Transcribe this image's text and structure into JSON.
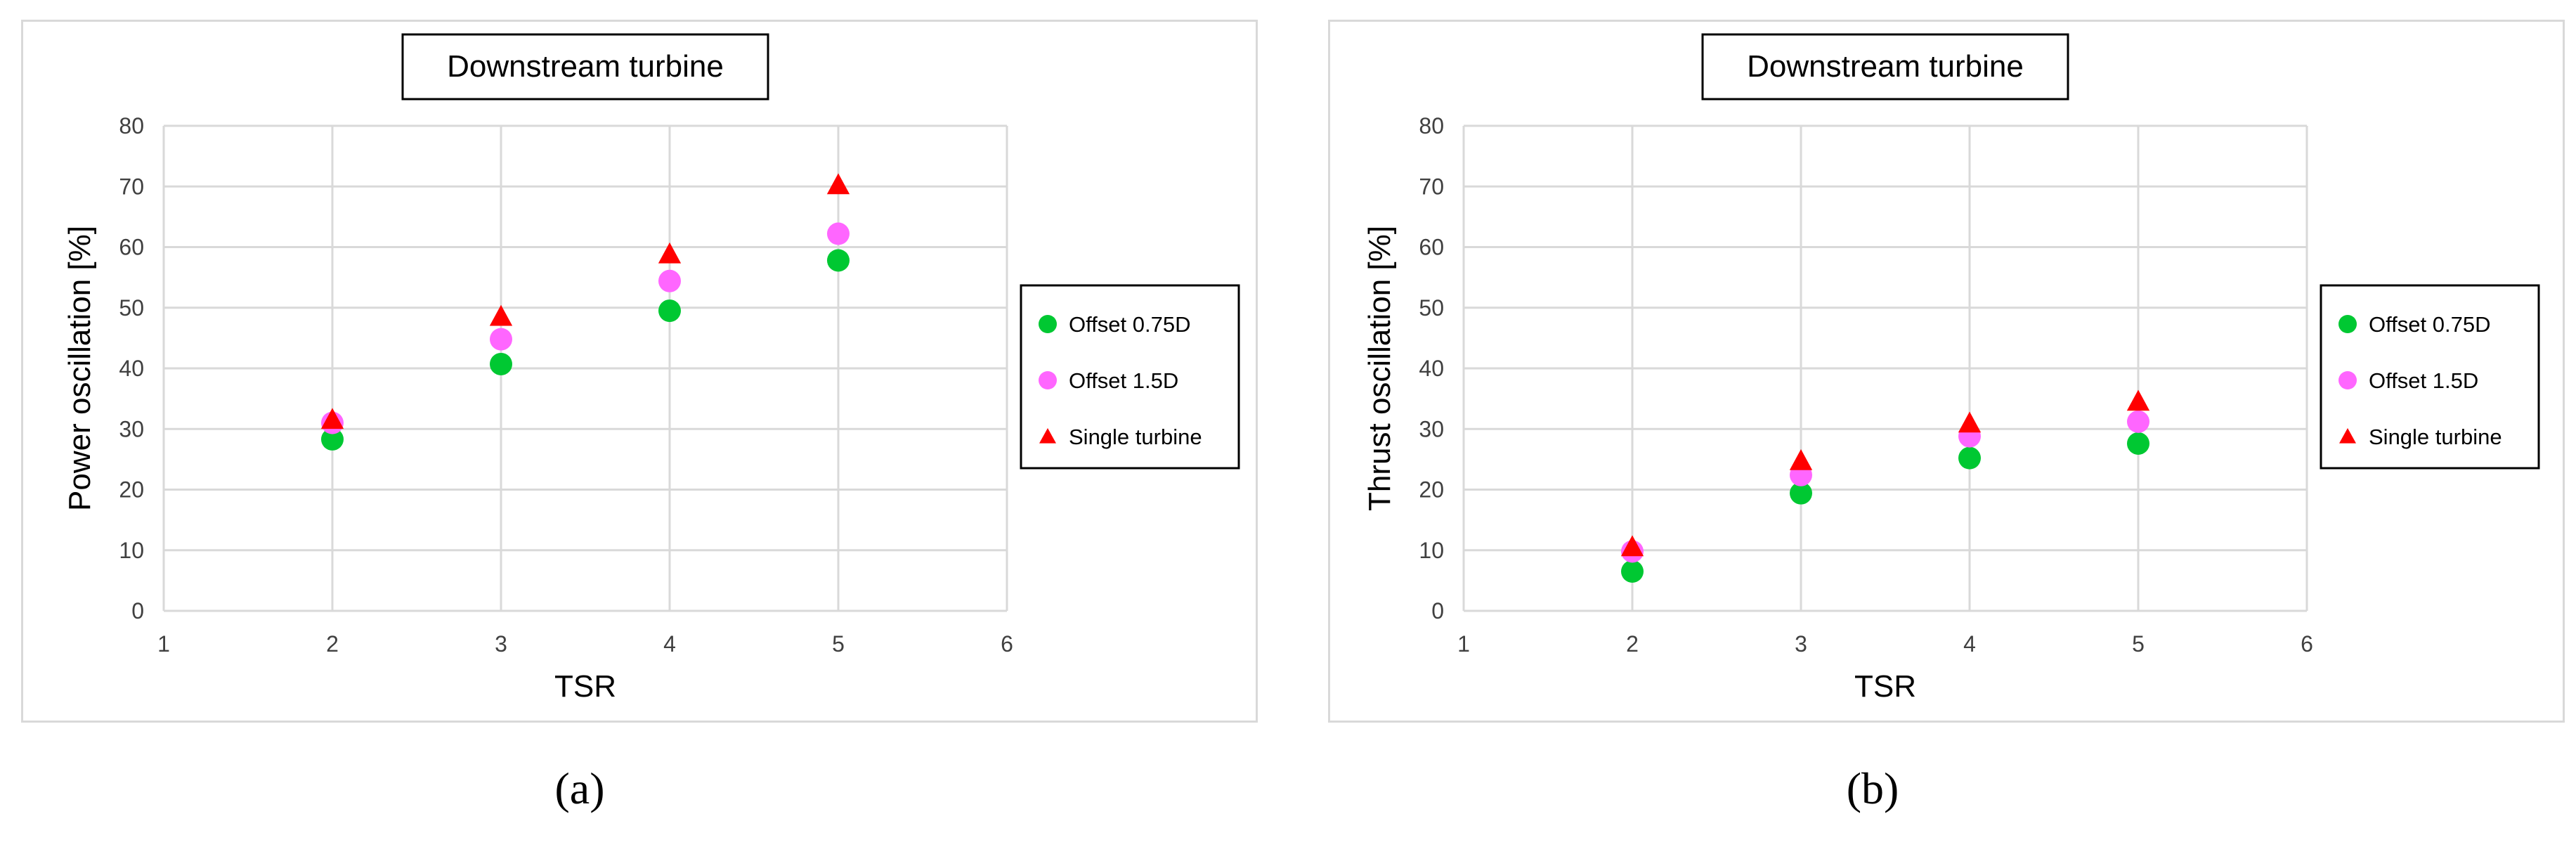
{
  "chart_data": [
    {
      "type": "scatter",
      "title": "Downstream turbine",
      "xlabel": "TSR",
      "ylabel": "Power oscillation [%]",
      "xlim": [
        1,
        6
      ],
      "ylim": [
        0,
        80
      ],
      "xticks": [
        1,
        2,
        3,
        4,
        5,
        6
      ],
      "yticks": [
        0,
        10,
        20,
        30,
        40,
        50,
        60,
        70,
        80
      ],
      "grid": true,
      "legend_position": "right",
      "series": [
        {
          "name": "Offset 0.75D",
          "marker": "circle",
          "color": "#00c832",
          "x": [
            2,
            3,
            4,
            5
          ],
          "y": [
            28.3,
            40.7,
            49.5,
            57.8
          ]
        },
        {
          "name": "Offset 1.5D",
          "marker": "circle",
          "color": "#ff66ff",
          "x": [
            2,
            3,
            4,
            5
          ],
          "y": [
            31,
            44.8,
            54.4,
            62.2
          ]
        },
        {
          "name": "Single turbine",
          "marker": "triangle",
          "color": "#ff0000",
          "x": [
            2,
            3,
            4,
            5
          ],
          "y": [
            31.5,
            48.5,
            58.8,
            70.2
          ]
        }
      ]
    },
    {
      "type": "scatter",
      "title": "Downstream turbine",
      "xlabel": "TSR",
      "ylabel": "Thrust oscillation [%]",
      "xlim": [
        1,
        6
      ],
      "ylim": [
        0,
        80
      ],
      "xticks": [
        1,
        2,
        3,
        4,
        5,
        6
      ],
      "yticks": [
        0,
        10,
        20,
        30,
        40,
        50,
        60,
        70,
        80
      ],
      "grid": true,
      "legend_position": "right",
      "series": [
        {
          "name": "Offset 0.75D",
          "marker": "circle",
          "color": "#00c832",
          "x": [
            2,
            3,
            4,
            5
          ],
          "y": [
            6.5,
            19.4,
            25.2,
            27.6
          ]
        },
        {
          "name": "Offset 1.5D",
          "marker": "circle",
          "color": "#ff66ff",
          "x": [
            2,
            3,
            4,
            5
          ],
          "y": [
            9.8,
            22.4,
            28.8,
            31.2
          ]
        },
        {
          "name": "Single turbine",
          "marker": "triangle",
          "color": "#ff0000",
          "x": [
            2,
            3,
            4,
            5
          ],
          "y": [
            10.5,
            24.7,
            30.9,
            34.5
          ]
        }
      ]
    }
  ],
  "panel_labels": [
    "(a)",
    "(b)"
  ]
}
